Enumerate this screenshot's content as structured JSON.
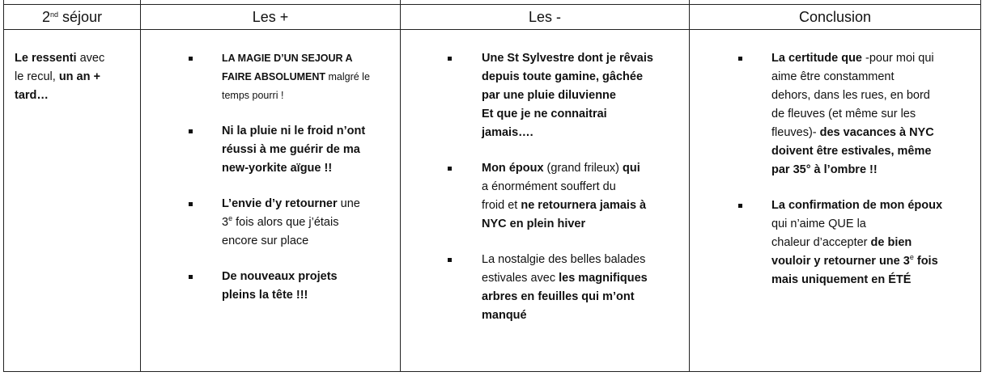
{
  "table": {
    "headers": [
      [
        {
          "t": "2"
        },
        {
          "t": "nd",
          "sup": true
        },
        {
          "t": " séjour"
        }
      ],
      [
        {
          "t": "Les +"
        }
      ],
      [
        {
          "t": "Les -"
        }
      ],
      [
        {
          "t": "Conclusion"
        }
      ]
    ],
    "columns": [
      {
        "bullets": false,
        "items": [
          [
            [
              {
                "t": "Le ressenti",
                "b": true
              },
              {
                "t": " avec"
              }
            ],
            [
              {
                "t": "le recul, "
              },
              {
                "t": "un an +",
                "b": true
              }
            ],
            [
              {
                "t": "tard…",
                "b": true
              }
            ]
          ]
        ]
      },
      {
        "bullets": true,
        "items": [
          [
            [
              {
                "t": "LA MAGIE D’UN SEJOUR A",
                "b": true,
                "sc": true
              }
            ],
            [
              {
                "t": "FAIRE ABSOLUMENT",
                "b": true,
                "sc": true
              },
              {
                "t": " malgré le",
                "sc": true
              }
            ],
            [
              {
                "t": "temps pourri !",
                "sc": true
              }
            ]
          ],
          [
            [
              {
                "t": "Ni la pluie ni le froid n’ont",
                "b": true
              }
            ],
            [
              {
                "t": "réussi à me guérir de ma",
                "b": true
              }
            ],
            [
              {
                "t": "new-yorkite aïgue  !!",
                "b": true
              }
            ]
          ],
          [
            [
              {
                "t": "L’envie d’y retourner",
                "b": true
              },
              {
                "t": " une"
              }
            ],
            [
              {
                "t": "3"
              },
              {
                "t": "e",
                "sup": true
              },
              {
                "t": " fois alors que j’étais"
              }
            ],
            [
              {
                "t": "encore sur place"
              }
            ]
          ],
          [
            [
              {
                "t": "De nouveaux  projets",
                "b": true
              }
            ],
            [
              {
                "t": "pleins la tête !!!",
                "b": true
              }
            ]
          ]
        ]
      },
      {
        "bullets": true,
        "items": [
          [
            [
              {
                "t": "Une St Sylvestre dont je rêvais",
                "b": true
              }
            ],
            [
              {
                "t": "depuis toute gamine,  gâchée",
                "b": true
              }
            ],
            [
              {
                "t": "par une pluie diluvienne",
                "b": true
              }
            ],
            [
              {
                "t": "Et que je ne connaitrai",
                "b": true
              }
            ],
            [
              {
                "t": "jamais….",
                "b": true
              }
            ]
          ],
          [
            [
              {
                "t": "Mon époux",
                "b": true
              },
              {
                "t": " (grand frileux) "
              },
              {
                "t": "qui",
                "b": true
              }
            ],
            [
              {
                "t": "a énormément  souffert du"
              }
            ],
            [
              {
                "t": "froid et "
              },
              {
                "t": "ne retournera jamais à",
                "b": true
              }
            ],
            [
              {
                "t": "NYC en plein hiver",
                "b": true
              }
            ]
          ],
          [
            [
              {
                "t": "La nostalgie  des belles  balades"
              }
            ],
            [
              {
                "t": "estivales  avec "
              },
              {
                "t": "les magnifiques",
                "b": true
              }
            ],
            [
              {
                "t": "arbres en feuilles qui m’ont",
                "b": true
              }
            ],
            [
              {
                "t": "manqué",
                "b": true
              }
            ]
          ]
        ]
      },
      {
        "bullets": true,
        "items": [
          [
            [
              {
                "t": "La certitude que",
                "b": true
              },
              {
                "t": " -pour moi qui"
              }
            ],
            [
              {
                "t": "aime être constamment"
              }
            ],
            [
              {
                "t": "dehors, dans les rues, en bord"
              }
            ],
            [
              {
                "t": "de fleuves (et même sur les"
              }
            ],
            [
              {
                "t": "fleuves)- "
              },
              {
                "t": "des vacances à NYC",
                "b": true
              }
            ],
            [
              {
                "t": "doivent être estivales, même",
                "b": true
              }
            ],
            [
              {
                "t": "par 35° à l’ombre !!",
                "b": true
              }
            ]
          ],
          [
            [
              {
                "t": "La confirmation de mon époux",
                "b": true
              }
            ],
            [
              {
                "t": "qui n’aime QUE la"
              }
            ],
            [
              {
                "t": "chaleur d’accepter "
              },
              {
                "t": "de bien",
                "b": true
              }
            ],
            [
              {
                "t": "vouloir y retourner une 3",
                "b": true
              },
              {
                "t": "e",
                "sup": true
              },
              {
                "t": " fois",
                "b": true
              }
            ],
            [
              {
                "t": "mais uniquement en ÉTÉ",
                "b": true
              }
            ]
          ]
        ]
      }
    ]
  }
}
